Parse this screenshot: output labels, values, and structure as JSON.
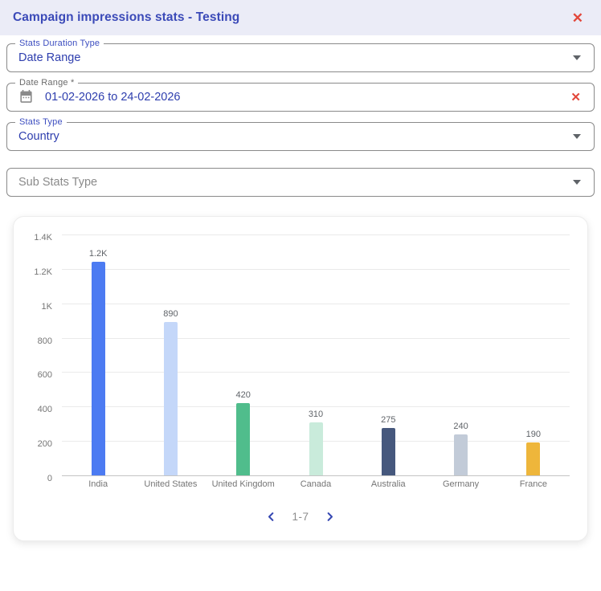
{
  "dialog": {
    "title": "Campaign impressions stats - Testing",
    "close_icon": "✕"
  },
  "form": {
    "stats_duration_type": {
      "label": "Stats Duration Type",
      "value": "Date Range"
    },
    "date_range": {
      "label": "Date Range *",
      "value": "01-02-2026 to 24-02-2026",
      "clear_icon": "✕"
    },
    "stats_type": {
      "label": "Stats Type",
      "value": "Country"
    },
    "sub_stats_type": {
      "placeholder": "Sub Stats Type"
    }
  },
  "chart_data": {
    "type": "bar",
    "title": "",
    "xlabel": "",
    "ylabel": "",
    "categories": [
      "India",
      "United States",
      "United Kingdom",
      "Canada",
      "Australia",
      "Germany",
      "France"
    ],
    "values": [
      1240,
      890,
      420,
      310,
      275,
      240,
      190
    ],
    "bar_labels": [
      "1.2K",
      "890",
      "420",
      "310",
      "275",
      "240",
      "190"
    ],
    "bar_colors": [
      "#4C7BF2",
      "#C4D7F9",
      "#50BD8C",
      "#C9EBDB",
      "#46587D",
      "#C2CBD8",
      "#EEB63B"
    ],
    "ylim": [
      0,
      1400
    ],
    "yticks": [
      {
        "value": 1400,
        "label": "1.4K"
      },
      {
        "value": 1200,
        "label": "1.2K"
      },
      {
        "value": 1000,
        "label": "1K"
      },
      {
        "value": 800,
        "label": "800"
      },
      {
        "value": 600,
        "label": "600"
      },
      {
        "value": 400,
        "label": "400"
      },
      {
        "value": 200,
        "label": "200"
      },
      {
        "value": 0,
        "label": "0"
      }
    ],
    "grid": true,
    "legend": "none"
  },
  "pagination": {
    "range_label": "1-7"
  },
  "colors": {
    "header_bg": "#EBECF7",
    "title_text": "#3B4AB8",
    "field_value_text": "#2E3EAE",
    "accent_label": "#3D4EC0",
    "danger": "#E2473B",
    "pagination_chevron": "#3547B2",
    "grid_line": "#EAEAEA",
    "axis_line": "#C4C4C4"
  }
}
